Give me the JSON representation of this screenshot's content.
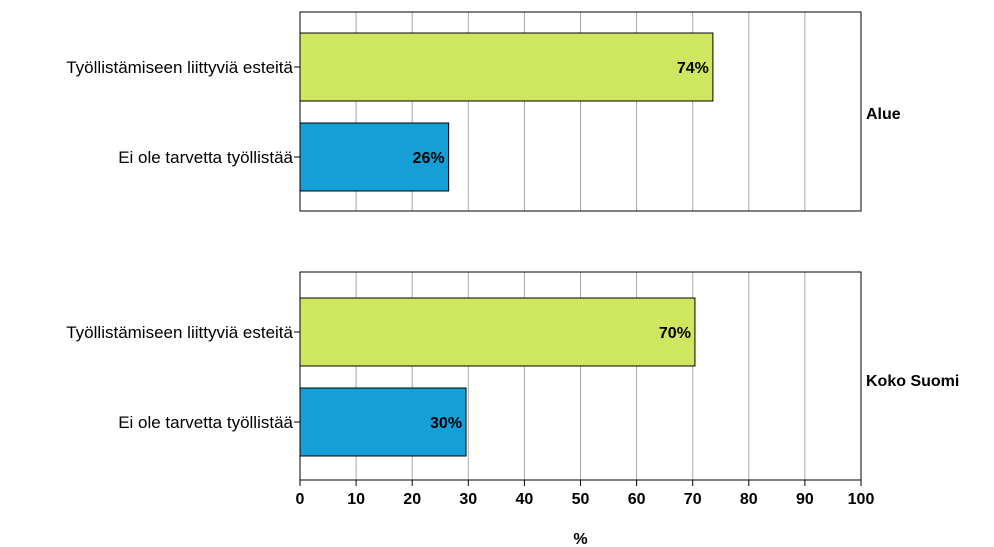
{
  "chart_data": {
    "type": "bar",
    "orientation": "horizontal",
    "xlabel": "%",
    "xlim": [
      0,
      100
    ],
    "xticks": [
      "0",
      "10",
      "20",
      "30",
      "40",
      "50",
      "60",
      "70",
      "80",
      "90",
      "100"
    ],
    "grid": true,
    "categories": [
      "Työllistämiseen liittyviä esteitä",
      "Ei ole tarvetta työllistää"
    ],
    "colors": [
      "#cfe660",
      "#169ed6"
    ],
    "panels": [
      {
        "name": "Alue",
        "values": [
          73.6,
          26.5
        ],
        "value_labels": [
          "74%",
          "26%"
        ]
      },
      {
        "name": "Koko Suomi",
        "values": [
          70.4,
          29.6
        ],
        "value_labels": [
          "70%",
          "30%"
        ]
      }
    ]
  }
}
